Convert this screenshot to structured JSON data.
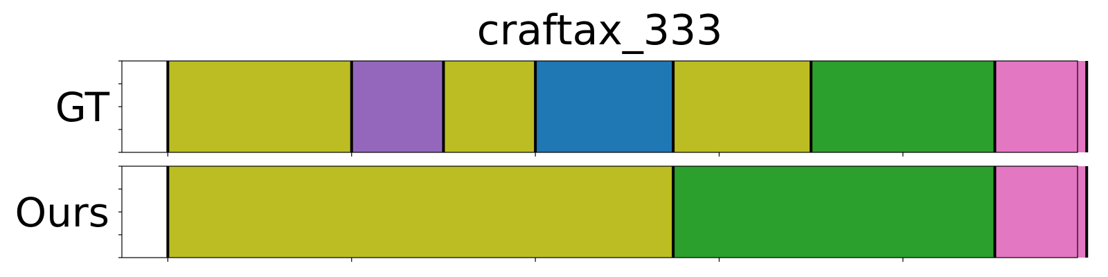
{
  "title": "craftax_333",
  "chart_data": {
    "type": "bar",
    "title": "craftax_333",
    "xlim": [
      0,
      260
    ],
    "x_ticks": [
      12.5,
      62.5,
      112.5,
      162.5,
      212.5,
      262.5
    ],
    "grid": false,
    "rows": [
      {
        "label": "GT",
        "segments": [
          {
            "start": 12.5,
            "end": 62.5,
            "color": "#bcbd22"
          },
          {
            "start": 62.5,
            "end": 87.5,
            "color": "#9467bd"
          },
          {
            "start": 87.5,
            "end": 112.5,
            "color": "#bcbd22"
          },
          {
            "start": 112.5,
            "end": 150,
            "color": "#1f77b4"
          },
          {
            "start": 150,
            "end": 187.5,
            "color": "#bcbd22"
          },
          {
            "start": 187.5,
            "end": 237.5,
            "color": "#2ca02c"
          },
          {
            "start": 237.5,
            "end": 262.5,
            "color": "#e377c2"
          }
        ]
      },
      {
        "label": "Ours",
        "segments": [
          {
            "start": 12.5,
            "end": 150,
            "color": "#bcbd22"
          },
          {
            "start": 150,
            "end": 237.5,
            "color": "#2ca02c"
          },
          {
            "start": 237.5,
            "end": 262.5,
            "color": "#e377c2"
          }
        ]
      }
    ]
  }
}
